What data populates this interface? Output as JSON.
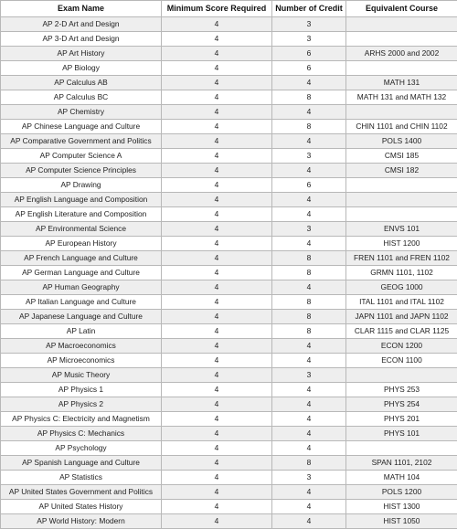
{
  "table": {
    "headers": [
      "Exam Name",
      "Minimum Score Required",
      "Number of Credit",
      "Equivalent Course"
    ],
    "rows": [
      [
        "AP 2-D Art and Design",
        "4",
        "3",
        ""
      ],
      [
        "AP 3-D Art and Design",
        "4",
        "3",
        ""
      ],
      [
        "AP Art History",
        "4",
        "6",
        "ARHS 2000 and 2002"
      ],
      [
        "AP Biology",
        "4",
        "6",
        ""
      ],
      [
        "AP Calculus AB",
        "4",
        "4",
        "MATH 131"
      ],
      [
        "AP Calculus BC",
        "4",
        "8",
        "MATH 131 and MATH 132"
      ],
      [
        "AP Chemistry",
        "4",
        "4",
        ""
      ],
      [
        "AP Chinese Language and Culture",
        "4",
        "8",
        "CHIN 1101 and CHIN 1102"
      ],
      [
        "AP Comparative Government and Politics",
        "4",
        "4",
        "POLS 1400"
      ],
      [
        "AP Computer Science A",
        "4",
        "3",
        "CMSI 185"
      ],
      [
        "AP Computer Science Principles",
        "4",
        "4",
        "CMSI 182"
      ],
      [
        "AP Drawing",
        "4",
        "6",
        ""
      ],
      [
        "AP English Language and Composition",
        "4",
        "4",
        ""
      ],
      [
        "AP English Literature and Composition",
        "4",
        "4",
        ""
      ],
      [
        "AP Environmental Science",
        "4",
        "3",
        "ENVS 101"
      ],
      [
        "AP European History",
        "4",
        "4",
        "HIST 1200"
      ],
      [
        "AP French Language and Culture",
        "4",
        "8",
        "FREN 1101 and FREN 1102"
      ],
      [
        "AP German Language and Culture",
        "4",
        "8",
        "GRMN 1101, 1102"
      ],
      [
        "AP Human Geography",
        "4",
        "4",
        "GEOG 1000"
      ],
      [
        "AP Italian Language and Culture",
        "4",
        "8",
        "ITAL 1101 and ITAL 1102"
      ],
      [
        "AP Japanese Language and Culture",
        "4",
        "8",
        "JAPN 1101 and JAPN 1102"
      ],
      [
        "AP Latin",
        "4",
        "8",
        "CLAR 1115 and CLAR 1125"
      ],
      [
        "AP Macroeconomics",
        "4",
        "4",
        "ECON 1200"
      ],
      [
        "AP Microeconomics",
        "4",
        "4",
        "ECON 1100"
      ],
      [
        "AP Music Theory",
        "4",
        "3",
        ""
      ],
      [
        "AP Physics 1",
        "4",
        "4",
        "PHYS 253"
      ],
      [
        "AP Physics 2",
        "4",
        "4",
        "PHYS 254"
      ],
      [
        "AP Physics C: Electricity and Magnetism",
        "4",
        "4",
        "PHYS 201"
      ],
      [
        "AP Physics C: Mechanics",
        "4",
        "4",
        "PHYS 101"
      ],
      [
        "AP Psychology",
        "4",
        "4",
        ""
      ],
      [
        "AP Spanish Language and Culture",
        "4",
        "8",
        "SPAN 1101, 2102"
      ],
      [
        "AP Statistics",
        "4",
        "3",
        "MATH 104"
      ],
      [
        "AP United States Government and Politics",
        "4",
        "4",
        "POLS 1200"
      ],
      [
        "AP United States History",
        "4",
        "4",
        "HIST 1300"
      ],
      [
        "AP World History: Modern",
        "4",
        "4",
        "HIST 1050"
      ]
    ]
  }
}
